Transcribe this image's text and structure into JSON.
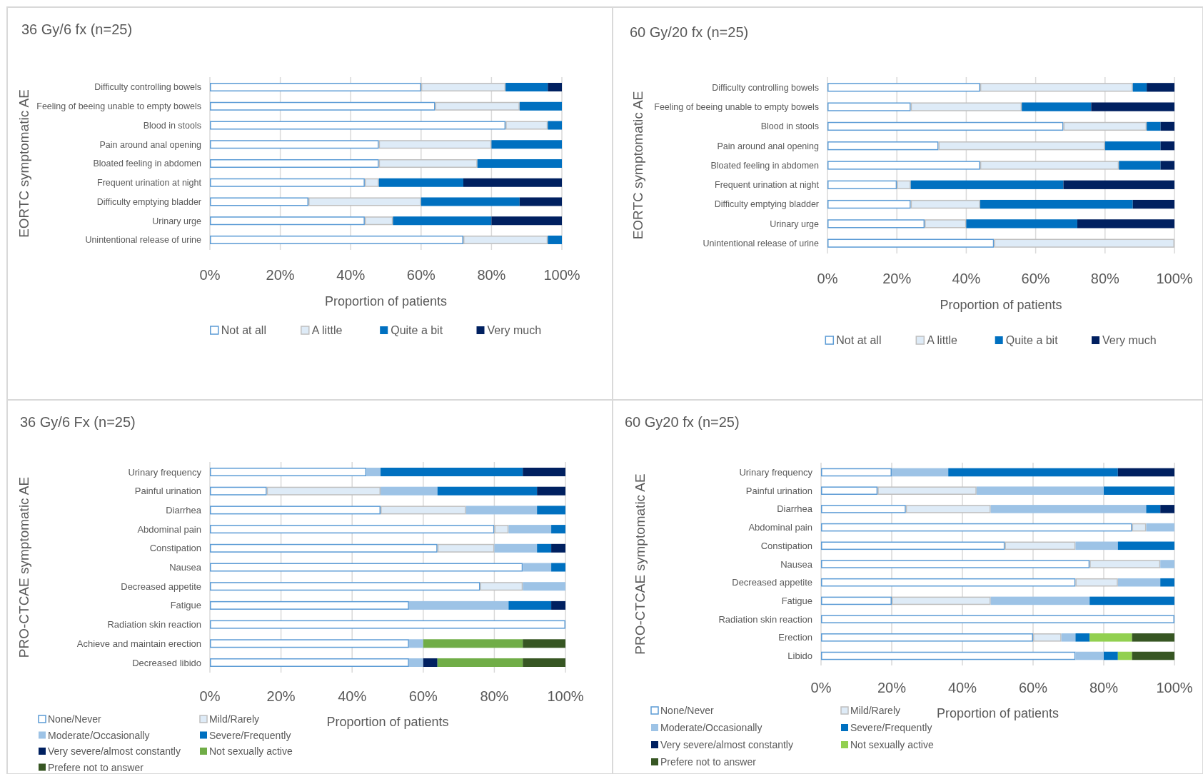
{
  "chart_data": [
    {
      "type": "bar",
      "orientation": "horizontal",
      "stacked": true,
      "title": "36 Gy/6 fx (n=25)",
      "xlabel": "Proportion of patients",
      "ylabel": "EORTC symptomatic AE",
      "legend": "bottom",
      "grid": "x",
      "xlim": [
        0,
        100
      ],
      "xticks": [
        {
          "value": 0,
          "label": "0%"
        },
        {
          "value": 20,
          "label": "20%"
        },
        {
          "value": 40,
          "label": "40%"
        },
        {
          "value": 60,
          "label": "60%"
        },
        {
          "value": 80,
          "label": "80%"
        },
        {
          "value": 100,
          "label": "100%"
        }
      ],
      "categories": [
        "Difficulty controlling bowels",
        "Feeling of beeing unable to empty bowels",
        "Blood in stools",
        "Pain around anal opening",
        "Bloated feeling in abdomen",
        "Frequent urination at night",
        "Difficulty emptying bladder",
        "Urinary urge",
        "Unintentional release of urine"
      ],
      "series": [
        {
          "name": "Not at all",
          "color": "#ffffff",
          "values": [
            60,
            64,
            84,
            48,
            48,
            44,
            28,
            44,
            72
          ]
        },
        {
          "name": "A little",
          "color": "#deebf7",
          "values": [
            24,
            24,
            12,
            32,
            28,
            4,
            32,
            8,
            24
          ]
        },
        {
          "name": "Quite a bit",
          "color": "#0070c0",
          "values": [
            12,
            12,
            4,
            20,
            24,
            24,
            28,
            28,
            4
          ]
        },
        {
          "name": "Very much",
          "color": "#002060",
          "values": [
            4,
            0,
            0,
            0,
            0,
            28,
            12,
            20,
            0
          ]
        }
      ]
    },
    {
      "type": "bar",
      "orientation": "horizontal",
      "stacked": true,
      "title": "60 Gy/20 fx (n=25)",
      "xlabel": "Proportion of patients",
      "ylabel": "EORTC symptomatic AE",
      "legend": "bottom",
      "grid": "x",
      "xlim": [
        0,
        100
      ],
      "xticks": [
        {
          "value": 0,
          "label": "0%"
        },
        {
          "value": 20,
          "label": "20%"
        },
        {
          "value": 40,
          "label": "40%"
        },
        {
          "value": 60,
          "label": "60%"
        },
        {
          "value": 80,
          "label": "80%"
        },
        {
          "value": 100,
          "label": "100%"
        }
      ],
      "categories": [
        "Difficulty controlling bowels",
        "Feeling of beeing unable to empty bowels",
        "Blood in stools",
        "Pain around anal opening",
        "Bloated feeling in abdomen",
        "Frequent urination at night",
        "Difficulty emptying bladder",
        "Urinary urge",
        "Unintentional release of urine"
      ],
      "series": [
        {
          "name": "Not at all",
          "color": "#ffffff",
          "values": [
            44,
            24,
            68,
            32,
            44,
            20,
            24,
            28,
            48
          ]
        },
        {
          "name": "A little",
          "color": "#deebf7",
          "values": [
            44,
            32,
            24,
            48,
            40,
            4,
            20,
            12,
            52
          ]
        },
        {
          "name": "Quite a bit",
          "color": "#0070c0",
          "values": [
            4,
            20,
            4,
            16,
            12,
            44,
            44,
            32,
            0
          ]
        },
        {
          "name": "Very much",
          "color": "#002060",
          "values": [
            8,
            24,
            4,
            4,
            4,
            32,
            12,
            28,
            0
          ]
        }
      ]
    },
    {
      "type": "bar",
      "orientation": "horizontal",
      "stacked": true,
      "title": "36 Gy/6 Fx (n=25)",
      "xlabel": "Proportion of patients",
      "ylabel": "PRO-CTCAE symptomatic AE",
      "legend": "bottom left",
      "grid": "x",
      "xlim": [
        0,
        100
      ],
      "xticks": [
        {
          "value": 0,
          "label": "0%"
        },
        {
          "value": 20,
          "label": "20%"
        },
        {
          "value": 40,
          "label": "40%"
        },
        {
          "value": 60,
          "label": "60%"
        },
        {
          "value": 80,
          "label": "80%"
        },
        {
          "value": 100,
          "label": "100%"
        }
      ],
      "categories": [
        "Urinary frequency",
        "Painful urination",
        "Diarrhea",
        "Abdominal pain",
        "Constipation",
        "Nausea",
        "Decreased appetite",
        "Fatigue",
        "Radiation skin reaction",
        "Achieve and maintain erection",
        "Decreased libido"
      ],
      "series": [
        {
          "name": "None/Never",
          "color": "#ffffff",
          "values": [
            44,
            16,
            48,
            80,
            64,
            88,
            76,
            56,
            100,
            56,
            56
          ]
        },
        {
          "name": "Mild/Rarely",
          "color": "#deebf7",
          "values": [
            0,
            32,
            24,
            4,
            16,
            0,
            12,
            0,
            0,
            0,
            0
          ]
        },
        {
          "name": "Moderate/Occasionally",
          "color": "#9dc3e6",
          "values": [
            4,
            16,
            20,
            12,
            12,
            8,
            12,
            28,
            0,
            4,
            4
          ]
        },
        {
          "name": "Severe/Frequently",
          "color": "#0070c0",
          "values": [
            40,
            28,
            8,
            4,
            4,
            4,
            0,
            12,
            0,
            0,
            0
          ]
        },
        {
          "name": "Very severe/almost constantly",
          "color": "#002060",
          "values": [
            12,
            8,
            0,
            0,
            4,
            0,
            0,
            4,
            0,
            0,
            4
          ]
        },
        {
          "name": "Not sexually active",
          "color": "#70ad47",
          "values": [
            0,
            0,
            0,
            0,
            0,
            0,
            0,
            0,
            0,
            28,
            24
          ]
        },
        {
          "name": "Prefere not to answer",
          "color": "#375623",
          "values": [
            0,
            0,
            0,
            0,
            0,
            0,
            0,
            0,
            0,
            12,
            12
          ]
        }
      ]
    },
    {
      "type": "bar",
      "orientation": "horizontal",
      "stacked": true,
      "title": "60 Gy20 fx (n=25)",
      "xlabel": "Proportion of patients",
      "ylabel": "PRO-CTCAE symptomatic AE",
      "legend": "bottom left",
      "grid": "x",
      "xlim": [
        0,
        100
      ],
      "xticks": [
        {
          "value": 0,
          "label": "0%"
        },
        {
          "value": 20,
          "label": "20%"
        },
        {
          "value": 40,
          "label": "40%"
        },
        {
          "value": 60,
          "label": "60%"
        },
        {
          "value": 80,
          "label": "80%"
        },
        {
          "value": 100,
          "label": "100%"
        }
      ],
      "categories": [
        "Urinary frequency",
        "Painful urination",
        "Diarrhea",
        "Abdominal pain",
        "Constipation",
        "Nausea",
        "Decreased appetite",
        "Fatigue",
        "Radiation skin reaction",
        "Erection",
        "Libido"
      ],
      "series": [
        {
          "name": "None/Never",
          "color": "#ffffff",
          "values": [
            20,
            16,
            24,
            88,
            52,
            76,
            72,
            20,
            100,
            60,
            72
          ]
        },
        {
          "name": "Mild/Rarely",
          "color": "#deebf7",
          "values": [
            0,
            28,
            24,
            4,
            20,
            20,
            12,
            28,
            0,
            8,
            0
          ]
        },
        {
          "name": "Moderate/Occasionally",
          "color": "#9dc3e6",
          "values": [
            16,
            36,
            44,
            8,
            12,
            4,
            12,
            28,
            0,
            4,
            8
          ]
        },
        {
          "name": "Severe/Frequently",
          "color": "#0070c0",
          "values": [
            48,
            20,
            4,
            0,
            16,
            0,
            4,
            24,
            0,
            4,
            4
          ]
        },
        {
          "name": "Very severe/almost constantly",
          "color": "#002060",
          "values": [
            16,
            0,
            4,
            0,
            0,
            0,
            0,
            0,
            0,
            0,
            0
          ]
        },
        {
          "name": "Not sexually active",
          "color": "#92d050",
          "values": [
            0,
            0,
            0,
            0,
            0,
            0,
            0,
            0,
            0,
            12,
            4
          ]
        },
        {
          "name": "Prefere not to answer",
          "color": "#375623",
          "values": [
            0,
            0,
            0,
            0,
            0,
            0,
            0,
            0,
            0,
            12,
            12
          ]
        }
      ]
    }
  ]
}
